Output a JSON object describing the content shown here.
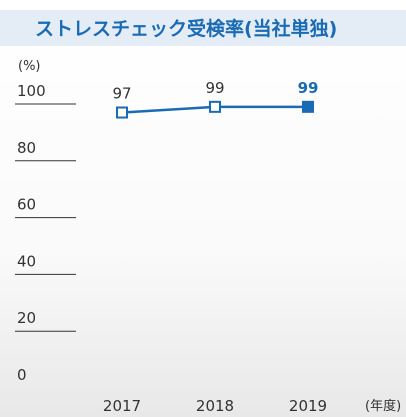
{
  "chart_data": {
    "type": "line",
    "title": "ストレスチェック受検率(当社単独)",
    "y_label": "(%)",
    "x_label": "(年度)",
    "categories": [
      "2017",
      "2018",
      "2019"
    ],
    "series": [
      {
        "name": "ストレスチェック受検率",
        "color": "#1a6bb5",
        "values": [
          97,
          99,
          99
        ]
      }
    ],
    "ylim": [
      0,
      100
    ],
    "yticks": [
      0,
      20,
      40,
      60,
      80,
      100
    ]
  }
}
